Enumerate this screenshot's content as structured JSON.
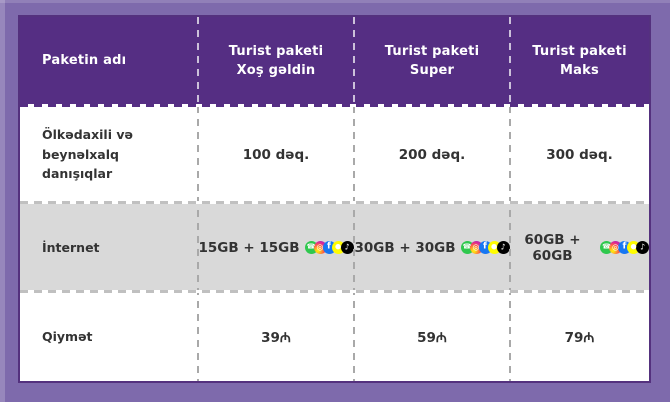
{
  "colors": {
    "page_bg": "#7e6aac",
    "header_purple": "#552e83",
    "row_gray": "#d9d9d9",
    "table_border": "#54317e",
    "text_dark": "#333333",
    "dash_gray": "#c0c0c0"
  },
  "table": {
    "corner_header": "Paketin adı",
    "package_headers": [
      {
        "lines": [
          "Turist paketi",
          "Xoş gəldin"
        ]
      },
      {
        "lines": [
          "Turist paketi",
          "Super"
        ]
      },
      {
        "lines": [
          "Turist paketi",
          "Maks"
        ]
      }
    ],
    "rows": [
      {
        "label": "Ölkədaxili və beynəlxalq danışıqlar",
        "label_lines": [
          "Ölkədaxili və beynəlxalq",
          "danışıqlar"
        ],
        "values": [
          "100 dəq.",
          "200 dəq.",
          "300 dəq."
        ]
      },
      {
        "label": "İnternet",
        "label_lines": [
          "İnternet"
        ],
        "values": [
          "15GB + 15GB",
          "30GB + 30GB",
          "60GB + 60GB"
        ],
        "has_social_icons": true
      },
      {
        "label": "Qiymət",
        "label_lines": [
          "Qiymət"
        ],
        "values": [
          "39₼",
          "59₼",
          "79₼"
        ]
      }
    ]
  },
  "social_icons": [
    {
      "name": "whatsapp-icon",
      "bg": "#2fc84e",
      "fg": "#ffffff",
      "glyph": "☎",
      "glyph_size": 7
    },
    {
      "name": "instagram-icon",
      "bg": "radial-gradient(circle at 30% 75%, #fee411 8%, #fd5949 45%, #d6249f 65%, #9b36b7 90%)",
      "fg": "#ffffff",
      "glyph": "◎",
      "glyph_size": 8
    },
    {
      "name": "facebook-icon",
      "bg": "#1877f2",
      "fg": "#ffffff",
      "glyph": "f",
      "glyph_size": 9
    },
    {
      "name": "snapchat-icon",
      "bg": "#fffc00",
      "fg": "#ffffff",
      "glyph": "●",
      "glyph_size": 7
    },
    {
      "name": "tiktok-icon",
      "bg": "#000000",
      "fg": "#ffffff",
      "glyph": "♪",
      "glyph_size": 8
    }
  ]
}
